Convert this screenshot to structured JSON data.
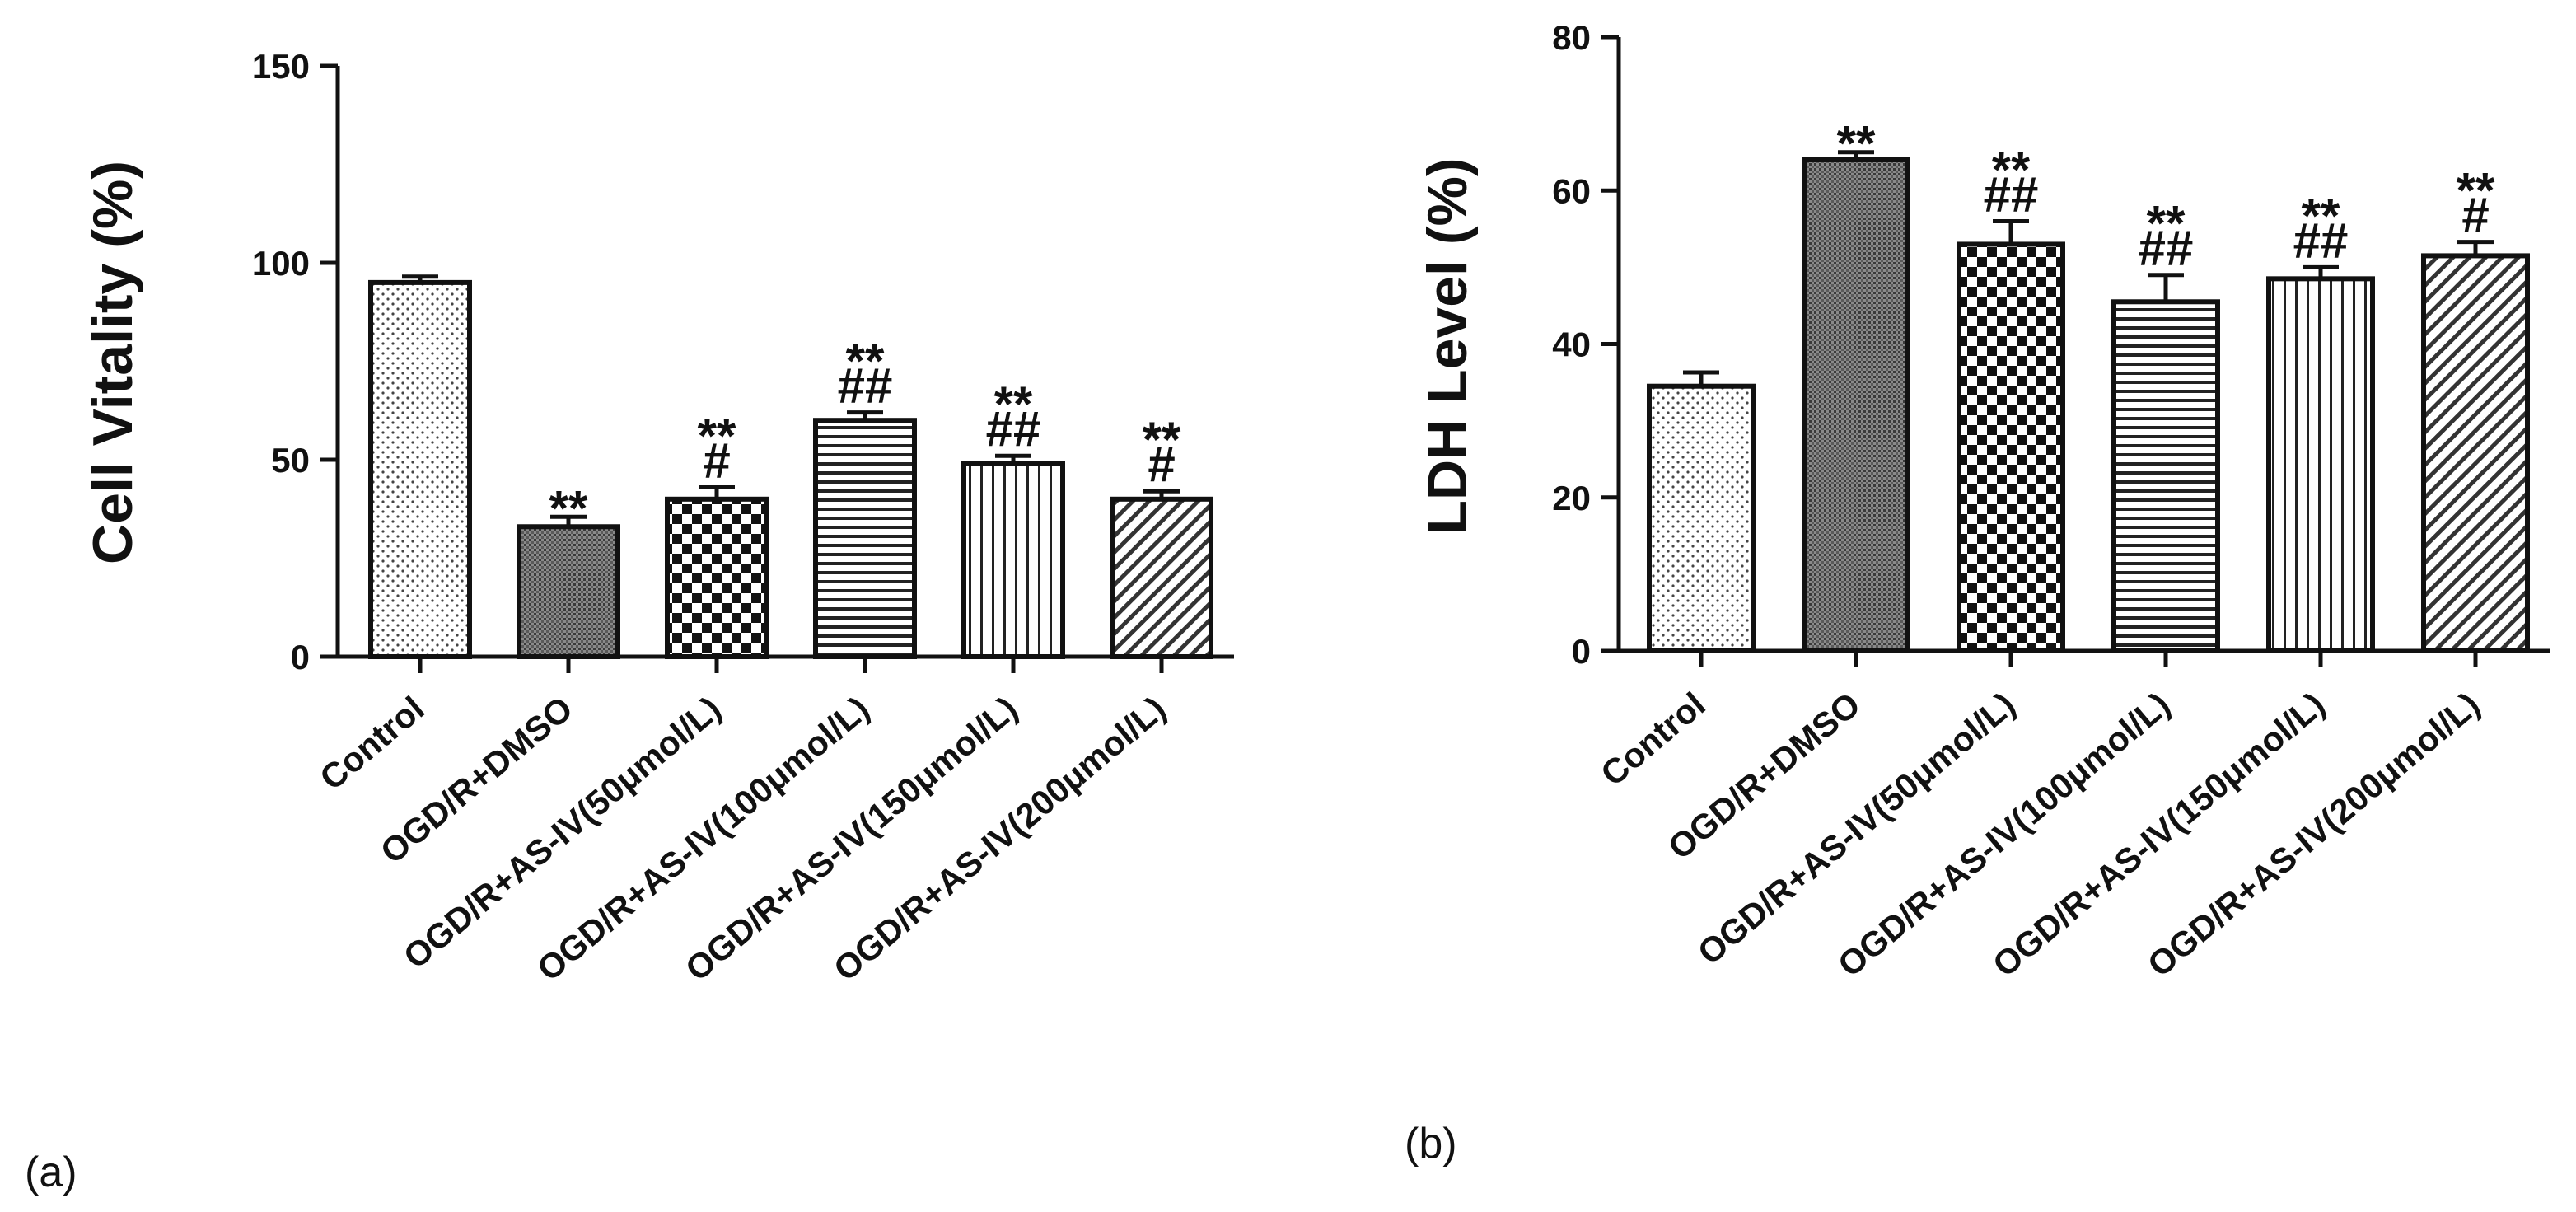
{
  "chart_data": [
    {
      "type": "bar",
      "panel_label": "(a)",
      "ylabel": "Cell Vitality (%)",
      "xlabel": "",
      "ylim": [
        0,
        150
      ],
      "yticks": [
        "0",
        "50",
        "100",
        "150"
      ],
      "categories": [
        "Control",
        "OGD/R+DMSO",
        "OGD/R+AS-IV(50μmol/L)",
        "OGD/R+AS-IV(100μmol/L)",
        "OGD/R+AS-IV(150μmol/L)",
        "OGD/R+AS-IV(200μmol/L)"
      ],
      "values": [
        95,
        33,
        40,
        60,
        49,
        40
      ],
      "errors": [
        1.5,
        2.5,
        3,
        2,
        2,
        2
      ],
      "patterns": [
        "dots",
        "dense",
        "checker",
        "hlines",
        "vlines",
        "diag"
      ],
      "significance": [
        [],
        [
          "**"
        ],
        [
          "**",
          "#"
        ],
        [
          "**",
          "##"
        ],
        [
          "**",
          "##"
        ],
        [
          "**",
          "#"
        ]
      ]
    },
    {
      "type": "bar",
      "panel_label": "(b)",
      "ylabel": "LDH Level (%)",
      "xlabel": "",
      "ylim": [
        0,
        80
      ],
      "yticks": [
        "0",
        "20",
        "40",
        "60",
        "80"
      ],
      "categories": [
        "Control",
        "OGD/R+DMSO",
        "OGD/R+AS-IV(50μmol/L)",
        "OGD/R+AS-IV(100μmol/L)",
        "OGD/R+AS-IV(150μmol/L)",
        "OGD/R+AS-IV(200μmol/L)"
      ],
      "values": [
        34.5,
        64,
        53,
        45.5,
        48.5,
        51.5
      ],
      "errors": [
        1.8,
        1,
        3,
        3.5,
        1.5,
        1.8
      ],
      "patterns": [
        "dots",
        "dense",
        "checker",
        "hlines",
        "vlines",
        "diag"
      ],
      "significance": [
        [],
        [
          "**"
        ],
        [
          "**",
          "##"
        ],
        [
          "**",
          "##"
        ],
        [
          "**",
          "##"
        ],
        [
          "**",
          "#"
        ]
      ]
    }
  ]
}
